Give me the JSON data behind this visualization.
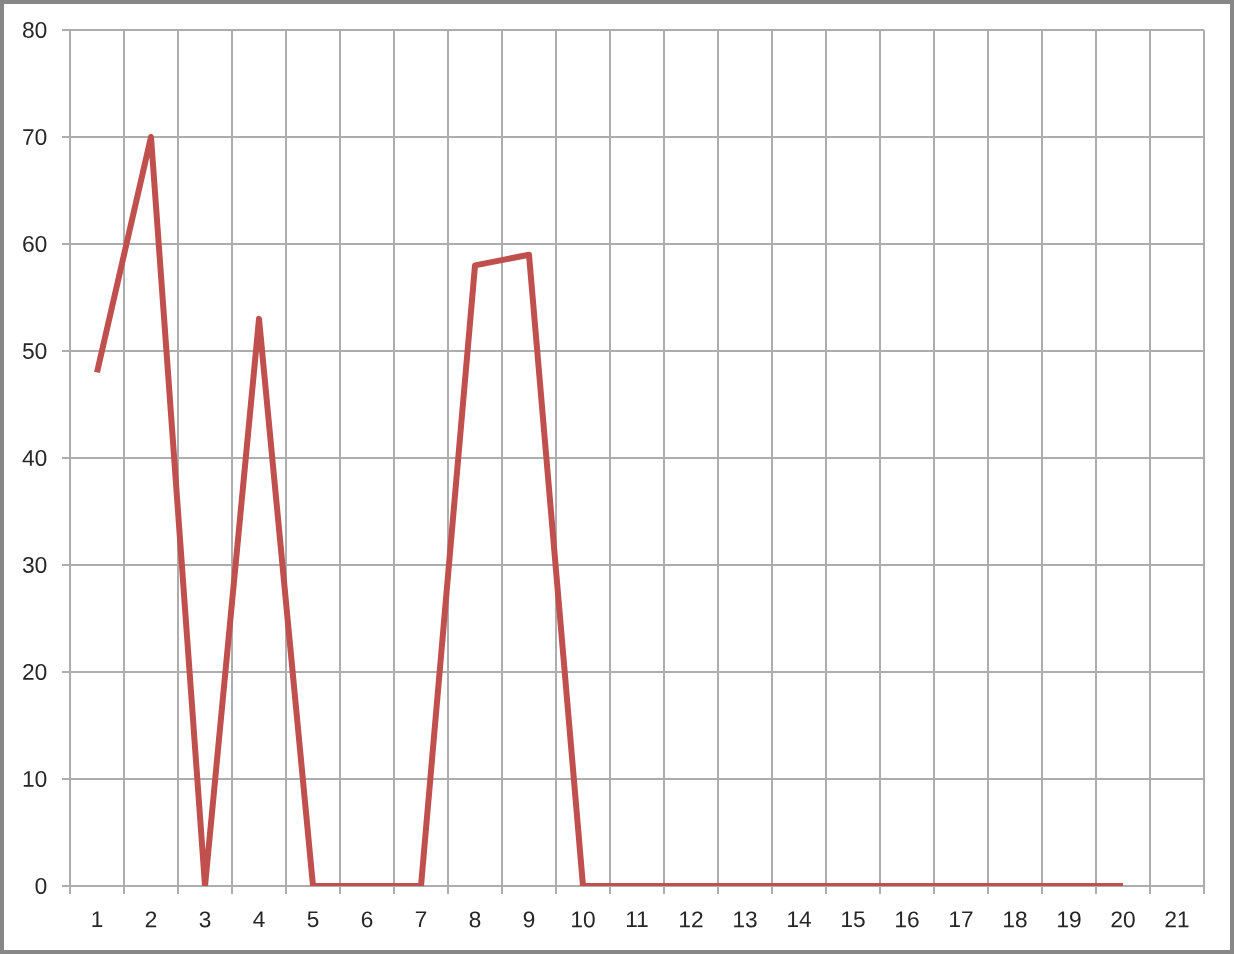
{
  "chart_data": {
    "type": "line",
    "categories": [
      "1",
      "2",
      "3",
      "4",
      "5",
      "6",
      "7",
      "8",
      "9",
      "10",
      "11",
      "12",
      "13",
      "14",
      "15",
      "16",
      "17",
      "18",
      "19",
      "20",
      "21"
    ],
    "values": [
      48,
      70,
      0,
      53,
      0,
      0,
      0,
      58,
      59,
      0,
      0,
      0,
      0,
      0,
      0,
      0,
      0,
      0,
      0,
      0,
      null
    ],
    "color": "#c0504d",
    "line_style": "solid",
    "ylim": [
      0,
      80
    ],
    "yticks": [
      0,
      10,
      20,
      30,
      40,
      50,
      60,
      70,
      80
    ],
    "grid": true
  }
}
